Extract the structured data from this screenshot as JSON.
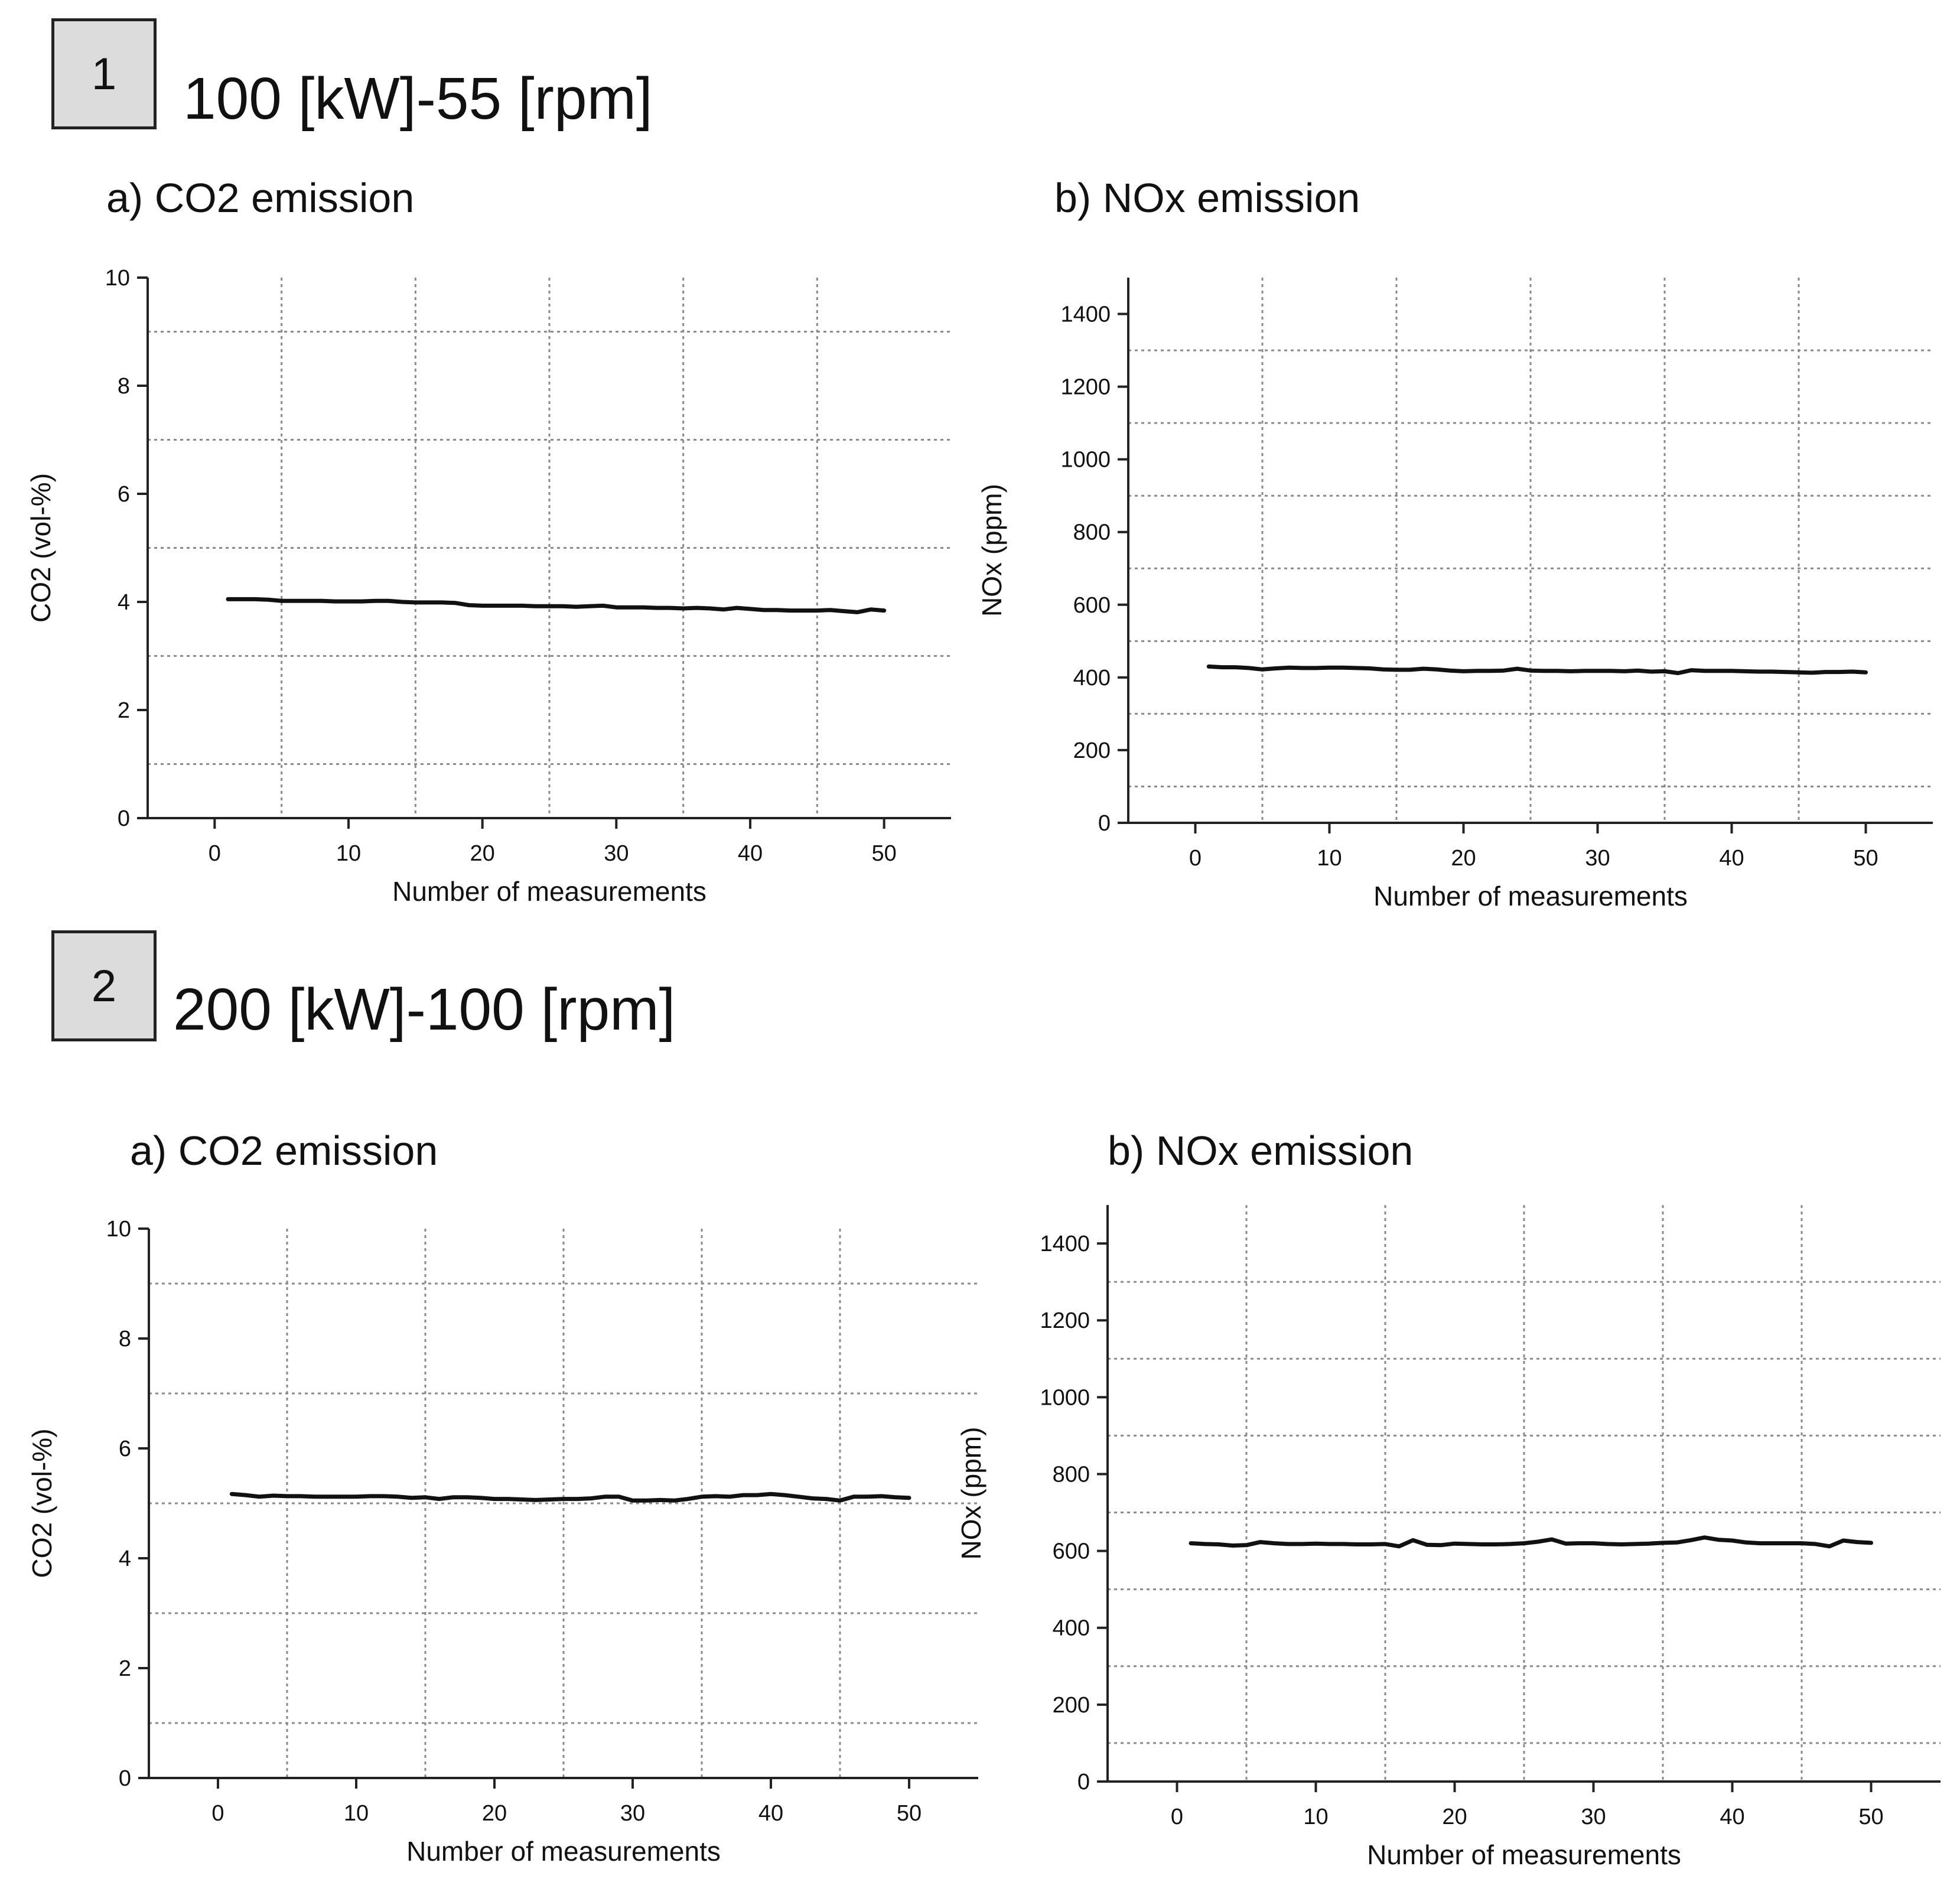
{
  "colors": {
    "line": "#111111",
    "grid": "#8a8a8a",
    "badge_bg": "#dcdcdc"
  },
  "cases": [
    {
      "number": "1",
      "title": "100 [kW]-55 [rpm]",
      "panels": [
        {
          "title": "a) CO2 emission"
        },
        {
          "title": "b) NOx emission"
        }
      ]
    },
    {
      "number": "2",
      "title": "200 [kW]-100 [rpm]",
      "panels": [
        {
          "title": "a) CO2 emission"
        },
        {
          "title": "b) NOx emission"
        }
      ]
    }
  ],
  "chart_data": [
    {
      "id": "case1-co2",
      "type": "line",
      "xlabel": "Number of measurements",
      "ylabel": "CO2 (vol-%)",
      "xlim": [
        -5,
        55
      ],
      "ylim": [
        0,
        10
      ],
      "xticks": [
        "0",
        "10",
        "20",
        "30",
        "40",
        "50"
      ],
      "yticks": [
        "0",
        "2",
        "4",
        "6",
        "8",
        "10"
      ],
      "grid": true,
      "series": [
        {
          "name": "CO2",
          "x": [
            1,
            2,
            3,
            4,
            5,
            6,
            7,
            8,
            9,
            10,
            11,
            12,
            13,
            14,
            15,
            16,
            17,
            18,
            19,
            20,
            21,
            22,
            23,
            24,
            25,
            26,
            27,
            28,
            29,
            30,
            31,
            32,
            33,
            34,
            35,
            36,
            37,
            38,
            39,
            40,
            41,
            42,
            43,
            44,
            45,
            46,
            47,
            48,
            49,
            50
          ],
          "y": [
            4.05,
            4.05,
            4.05,
            4.04,
            4.02,
            4.02,
            4.02,
            4.02,
            4.01,
            4.01,
            4.01,
            4.02,
            4.02,
            4.0,
            3.99,
            3.99,
            3.99,
            3.98,
            3.94,
            3.93,
            3.93,
            3.93,
            3.93,
            3.92,
            3.92,
            3.92,
            3.91,
            3.92,
            3.93,
            3.9,
            3.9,
            3.9,
            3.89,
            3.89,
            3.88,
            3.89,
            3.88,
            3.86,
            3.89,
            3.87,
            3.85,
            3.85,
            3.84,
            3.84,
            3.84,
            3.85,
            3.83,
            3.81,
            3.86,
            3.84
          ]
        }
      ]
    },
    {
      "id": "case1-nox",
      "type": "line",
      "xlabel": "Number of measurements",
      "ylabel": "NOx (ppm)",
      "xlim": [
        -5,
        55
      ],
      "ylim": [
        0,
        1500
      ],
      "xticks": [
        "0",
        "10",
        "20",
        "30",
        "40",
        "50"
      ],
      "yticks": [
        "0",
        "200",
        "400",
        "600",
        "800",
        "1000",
        "1200",
        "1400"
      ],
      "grid": true,
      "series": [
        {
          "name": "NOx",
          "x": [
            1,
            2,
            3,
            4,
            5,
            6,
            7,
            8,
            9,
            10,
            11,
            12,
            13,
            14,
            15,
            16,
            17,
            18,
            19,
            20,
            21,
            22,
            23,
            24,
            25,
            26,
            27,
            28,
            29,
            30,
            31,
            32,
            33,
            34,
            35,
            36,
            37,
            38,
            39,
            40,
            41,
            42,
            43,
            44,
            45,
            46,
            47,
            48,
            49,
            50
          ],
          "y": [
            430,
            428,
            428,
            426,
            422,
            425,
            427,
            426,
            426,
            427,
            427,
            426,
            425,
            422,
            421,
            421,
            424,
            422,
            419,
            417,
            418,
            418,
            419,
            424,
            419,
            418,
            418,
            417,
            418,
            418,
            418,
            417,
            419,
            416,
            417,
            412,
            420,
            418,
            418,
            418,
            417,
            416,
            416,
            415,
            414,
            413,
            415,
            415,
            416,
            414
          ]
        }
      ]
    },
    {
      "id": "case2-co2",
      "type": "line",
      "xlabel": "Number of measurements",
      "ylabel": "CO2 (vol-%)",
      "xlim": [
        -5,
        55
      ],
      "ylim": [
        0,
        10
      ],
      "xticks": [
        "0",
        "10",
        "20",
        "30",
        "40",
        "50"
      ],
      "yticks": [
        "0",
        "2",
        "4",
        "6",
        "8",
        "10"
      ],
      "grid": true,
      "series": [
        {
          "name": "CO2",
          "x": [
            1,
            2,
            3,
            4,
            5,
            6,
            7,
            8,
            9,
            10,
            11,
            12,
            13,
            14,
            15,
            16,
            17,
            18,
            19,
            20,
            21,
            22,
            23,
            24,
            25,
            26,
            27,
            28,
            29,
            30,
            31,
            32,
            33,
            34,
            35,
            36,
            37,
            38,
            39,
            40,
            41,
            42,
            43,
            44,
            45,
            46,
            47,
            48,
            49,
            50
          ],
          "y": [
            5.17,
            5.15,
            5.12,
            5.14,
            5.13,
            5.13,
            5.12,
            5.12,
            5.12,
            5.12,
            5.13,
            5.13,
            5.12,
            5.1,
            5.11,
            5.08,
            5.11,
            5.11,
            5.1,
            5.08,
            5.08,
            5.07,
            5.06,
            5.07,
            5.08,
            5.08,
            5.09,
            5.12,
            5.12,
            5.05,
            5.05,
            5.06,
            5.05,
            5.08,
            5.12,
            5.13,
            5.12,
            5.15,
            5.15,
            5.17,
            5.15,
            5.12,
            5.09,
            5.08,
            5.05,
            5.12,
            5.12,
            5.13,
            5.11,
            5.1
          ]
        }
      ]
    },
    {
      "id": "case2-nox",
      "type": "line",
      "xlabel": "Number of measurements",
      "ylabel": "NOx (ppm)",
      "xlim": [
        -5,
        55
      ],
      "ylim": [
        0,
        1500
      ],
      "xticks": [
        "0",
        "10",
        "20",
        "30",
        "40",
        "50"
      ],
      "yticks": [
        "0",
        "200",
        "400",
        "600",
        "800",
        "1000",
        "1200",
        "1400"
      ],
      "grid": true,
      "series": [
        {
          "name": "NOx",
          "x": [
            1,
            2,
            3,
            4,
            5,
            6,
            7,
            8,
            9,
            10,
            11,
            12,
            13,
            14,
            15,
            16,
            17,
            18,
            19,
            20,
            21,
            22,
            23,
            24,
            25,
            26,
            27,
            28,
            29,
            30,
            31,
            32,
            33,
            34,
            35,
            36,
            37,
            38,
            39,
            40,
            41,
            42,
            43,
            44,
            45,
            46,
            47,
            48,
            49,
            50
          ],
          "y": [
            620,
            618,
            617,
            614,
            615,
            623,
            620,
            618,
            618,
            619,
            618,
            618,
            617,
            617,
            618,
            612,
            628,
            616,
            615,
            619,
            618,
            617,
            617,
            618,
            620,
            624,
            630,
            619,
            620,
            620,
            618,
            617,
            618,
            619,
            621,
            622,
            628,
            635,
            629,
            627,
            622,
            620,
            620,
            620,
            620,
            618,
            612,
            627,
            623,
            621
          ]
        }
      ]
    }
  ]
}
